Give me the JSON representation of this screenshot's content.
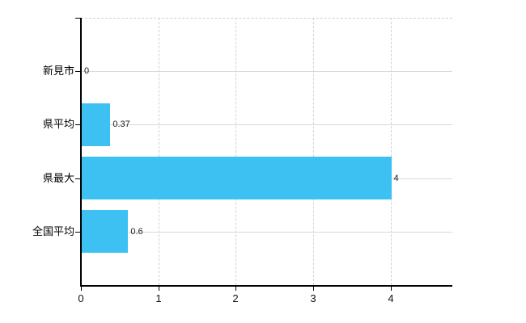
{
  "chart_data": {
    "type": "bar",
    "orientation": "horizontal",
    "title": "",
    "categories": [
      "新見市",
      "県平均",
      "県最大",
      "全国平均"
    ],
    "values": [
      0,
      0.37,
      4,
      0.6
    ],
    "value_labels": [
      "0",
      "0.37",
      "4",
      "0.6"
    ],
    "x_tick_values": [
      0,
      1,
      2,
      3,
      4
    ],
    "x_tick_labels": [
      "0",
      "1",
      "2",
      "3",
      "4"
    ],
    "xlim": [
      0,
      4.8
    ],
    "ylabel": "",
    "xlabel": "",
    "legend": "none",
    "grid": {
      "horizontal": "solid",
      "vertical": "dashed",
      "top_border": "dashed"
    }
  },
  "colors": {
    "background": "#ffffff",
    "bar": "#3dc1f3",
    "axis": "#000000",
    "grid_solid": "#d9d9d9",
    "grid_dashed": "#d2d2d2",
    "category_text": "#000000",
    "value_text": "#1a1a1a",
    "tick_text": "#111111"
  }
}
